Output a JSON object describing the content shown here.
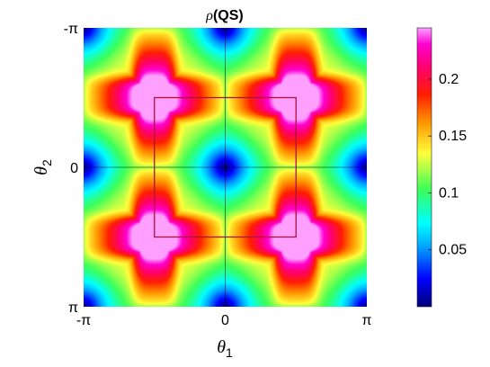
{
  "chart_data": {
    "type": "heatmap",
    "title": "ρ(QS)",
    "title_symbol": "ρ",
    "title_suffix": "(QS)",
    "xlabel": "θ1",
    "xlabel_symbol": "θ",
    "xlabel_sub": "1",
    "ylabel": "θ2",
    "ylabel_symbol": "θ",
    "ylabel_sub": "2",
    "x_ticks": [
      {
        "value": -3.14159,
        "label": "-π"
      },
      {
        "value": 0,
        "label": "0"
      },
      {
        "value": 3.14159,
        "label": "π"
      }
    ],
    "y_ticks": [
      {
        "value": -3.14159,
        "label": "-π"
      },
      {
        "value": 0,
        "label": "0"
      },
      {
        "value": 3.14159,
        "label": "π"
      }
    ],
    "xlim": [
      -3.14159,
      3.14159
    ],
    "ylim": [
      -3.14159,
      3.14159
    ],
    "y_direction": "reverse",
    "colorbar": {
      "min": 0,
      "max": 0.245,
      "ticks": [
        {
          "value": 0.05,
          "label": "0.05"
        },
        {
          "value": 0.1,
          "label": "0.1"
        },
        {
          "value": 0.15,
          "label": "0.15"
        },
        {
          "value": 0.2,
          "label": "0.2"
        }
      ],
      "colormap": "jet-to-magenta"
    },
    "model": {
      "description_of_values": "wave-like field: minima (~0) at (0,0), (0,±π), (±π,0), (±π,±π); maxima (~0.24) at (±π/2, ±π) and (±π, ±π/2); ridges (~0.2) along θ1=±π/2 and θ2=±π/2",
      "minimum": 0,
      "maximum": 0.245
    },
    "overlay_box": {
      "x_range": [
        -1.5708,
        1.5708
      ],
      "y_range": [
        -1.5708,
        1.5708
      ],
      "color": "#b0103a"
    },
    "crosshair_lines": [
      {
        "axis": "x",
        "value": 0
      },
      {
        "axis": "y",
        "value": 0
      }
    ]
  }
}
